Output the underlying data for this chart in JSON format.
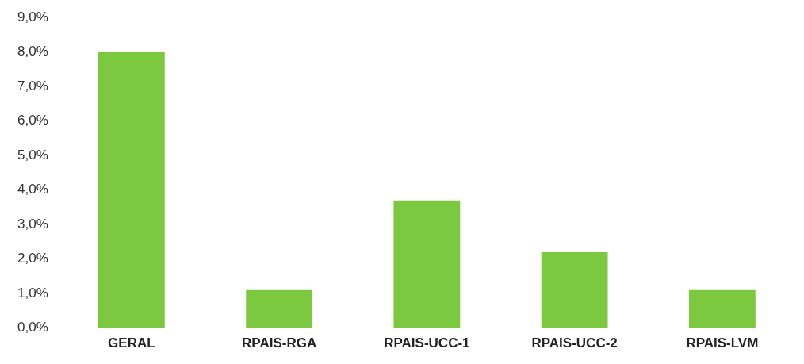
{
  "chart_data": {
    "type": "bar",
    "categories": [
      "GERAL",
      "RPAIS-RGA",
      "RPAIS-UCC-1",
      "RPAIS-UCC-2",
      "RPAIS-LVM"
    ],
    "values": [
      8.0,
      1.1,
      3.7,
      2.2,
      1.1
    ],
    "color": "#7cc940",
    "ylim": [
      0,
      9
    ],
    "yticks": [
      {
        "value": 0,
        "label": "0,0%"
      },
      {
        "value": 1,
        "label": "1,0%"
      },
      {
        "value": 2,
        "label": "2,0%"
      },
      {
        "value": 3,
        "label": "3,0%"
      },
      {
        "value": 4,
        "label": "4,0%"
      },
      {
        "value": 5,
        "label": "5,0%"
      },
      {
        "value": 6,
        "label": "6,0%"
      },
      {
        "value": 7,
        "label": "7,0%"
      },
      {
        "value": 8,
        "label": "8,0%"
      },
      {
        "value": 9,
        "label": "9,0%"
      }
    ],
    "grid": false,
    "legend": false
  }
}
